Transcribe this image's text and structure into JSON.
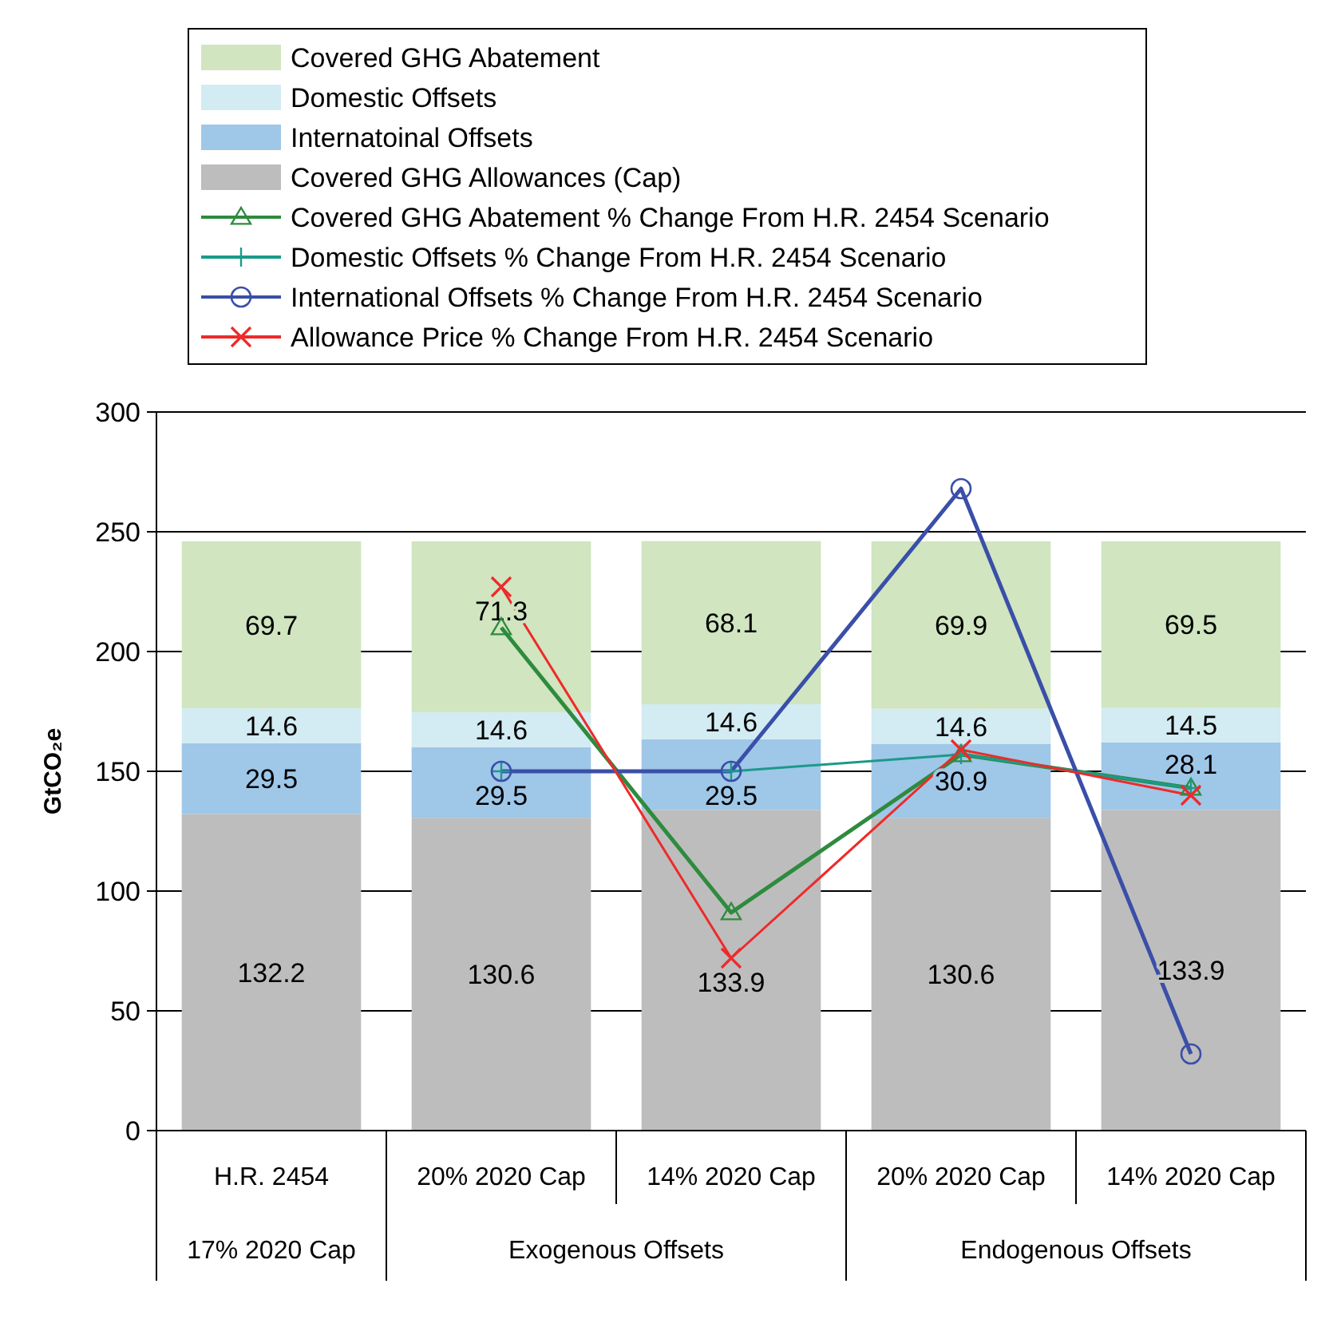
{
  "chart_data": {
    "type": "bar",
    "stacked": true,
    "ylabel": "GtCO₂e",
    "ylim": [
      0,
      300
    ],
    "yticks": [
      0,
      50,
      100,
      150,
      200,
      250,
      300
    ],
    "grid": "y",
    "legend": "top left",
    "categories": [
      "H.R. 2454",
      "20% 2020 Cap",
      "14% 2020 Cap",
      "20% 2020 Cap",
      "14% 2020 Cap"
    ],
    "annotations": [
      "17% 2020 Cap",
      "Exogenous Offsets",
      "Endogenous Offsets"
    ],
    "series": [
      {
        "name": "Covered GHG Allowances (Cap)",
        "color": "#bdbdbd",
        "values": [
          132.2,
          130.6,
          133.9,
          130.6,
          133.9
        ],
        "value_labels": [
          "132.2",
          "130.6",
          "133.9",
          "130.6",
          "133.9"
        ]
      },
      {
        "name": "Internatoinal Offsets",
        "color": "#9fc7e8",
        "values": [
          29.5,
          29.5,
          29.5,
          30.9,
          28.1
        ],
        "value_labels": [
          "29.5",
          "29.5",
          "29.5",
          "30.9",
          "28.1"
        ]
      },
      {
        "name": "Domestic Offsets",
        "color": "#d3ebf2",
        "values": [
          14.6,
          14.6,
          14.6,
          14.6,
          14.5
        ],
        "value_labels": [
          "14.6",
          "14.6",
          "14.6",
          "14.6",
          "14.5"
        ]
      },
      {
        "name": "Covered GHG Abatement",
        "color": "#d0e5c0",
        "values": [
          69.7,
          71.3,
          68.1,
          69.9,
          69.5
        ],
        "value_labels": [
          "69.7",
          "71.3",
          "68.1",
          "69.9",
          "69.5"
        ]
      },
      {
        "type": "line",
        "marker": "triangle",
        "name": "Covered GHG Abatement % Change From H.R. 2454 Scenario",
        "color": "#2e8b3e",
        "values": [
          null,
          210,
          91,
          157,
          143
        ]
      },
      {
        "type": "line",
        "marker": "cross",
        "name": "Domestic Offsets % Change From H.R. 2454 Scenario",
        "color": "#1b9a8a",
        "values": [
          null,
          150,
          150,
          157,
          143
        ]
      },
      {
        "type": "line",
        "marker": "circle",
        "name": "International Offsets % Change From H.R. 2454 Scenario",
        "color": "#3a4fa8",
        "values": [
          null,
          150,
          150,
          268,
          32
        ]
      },
      {
        "type": "line",
        "marker": "x",
        "name": "Allowance Price % Change From H.R. 2454 Scenario",
        "color": "#ee2a2a",
        "values": [
          null,
          227,
          72,
          159,
          140
        ]
      }
    ]
  }
}
